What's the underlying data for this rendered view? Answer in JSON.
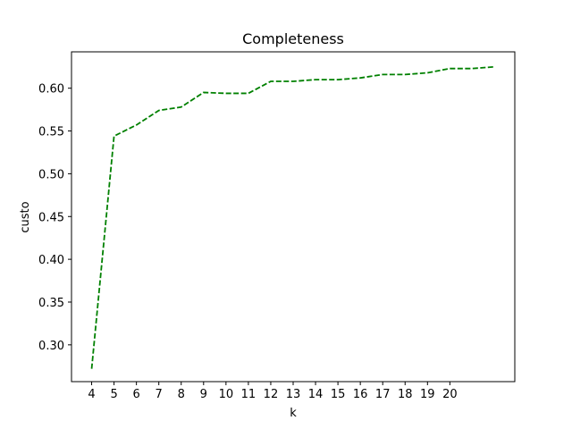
{
  "chart_data": {
    "type": "line",
    "title": "Completeness",
    "xlabel": "k",
    "ylabel": "custo",
    "x": [
      4,
      5,
      6,
      7,
      8,
      9,
      10,
      11,
      12,
      13,
      14,
      15,
      16,
      17,
      18,
      19,
      20,
      21,
      22
    ],
    "xticks": [
      4,
      5,
      6,
      7,
      8,
      9,
      10,
      11,
      12,
      13,
      14,
      15,
      16,
      17,
      18,
      19,
      20
    ],
    "xlim": [
      3.1,
      22.9
    ],
    "ylim": [
      0.257,
      0.6425
    ],
    "yticks": [
      0.3,
      0.35,
      0.4,
      0.45,
      0.5,
      0.55,
      0.6
    ],
    "ytick_labels": [
      "0.30",
      "0.35",
      "0.40",
      "0.45",
      "0.50",
      "0.55",
      "0.60"
    ],
    "grid": false,
    "series": [
      {
        "values": [
          0.272,
          0.544,
          0.557,
          0.574,
          0.578,
          0.595,
          0.594,
          0.594,
          0.608,
          0.608,
          0.61,
          0.61,
          0.612,
          0.616,
          0.616,
          0.618,
          0.623,
          0.623,
          0.625
        ],
        "color": "#008000",
        "linestyle": "dashed"
      }
    ]
  }
}
